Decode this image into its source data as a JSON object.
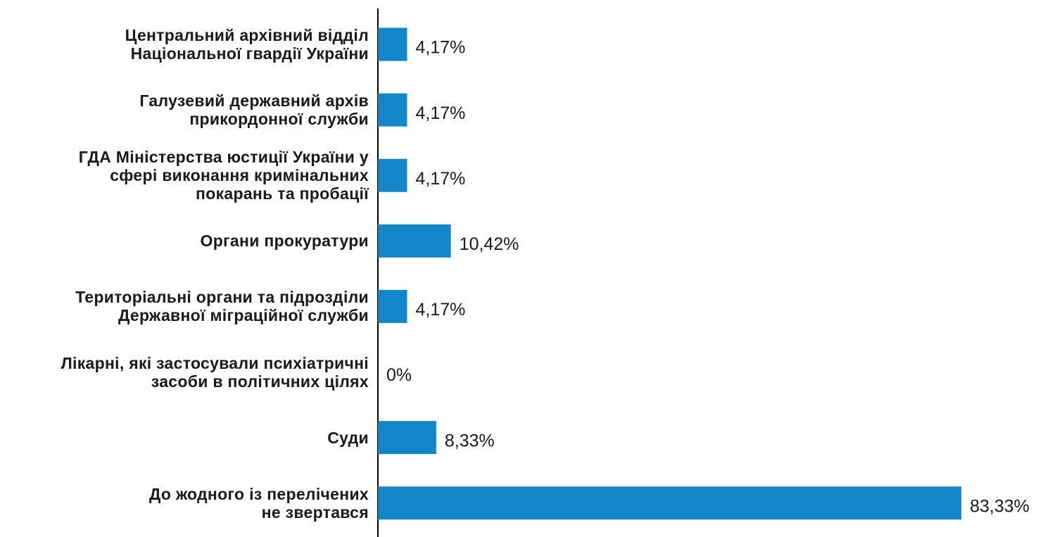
{
  "chart_data": {
    "type": "barh",
    "categories": [
      "Центральний архівний відділ\nНаціональної гвардії України",
      "Галузевий державний архів\nприкордонної служби",
      "ГДА Міністерства юстиції України у\nсфері виконання кримінальних\nпокарань та пробації",
      "Органи прокуратури",
      "Територіальні органи та підрозділи\nДержавної міграційної служби",
      "Лікарні, які застосували психіатричні\nзасоби в політичних цілях",
      "Суди",
      "До жодного із перелічених\nне звертався"
    ],
    "values": [
      4.17,
      4.17,
      4.17,
      10.42,
      4.17,
      0,
      8.33,
      83.33
    ],
    "value_labels": [
      "4,17%",
      "4,17%",
      "4,17%",
      "10,42%",
      "4,17%",
      "0%",
      "8,33%",
      "83,33%"
    ],
    "color": "#1386c9",
    "xlim": [
      0,
      100
    ]
  }
}
